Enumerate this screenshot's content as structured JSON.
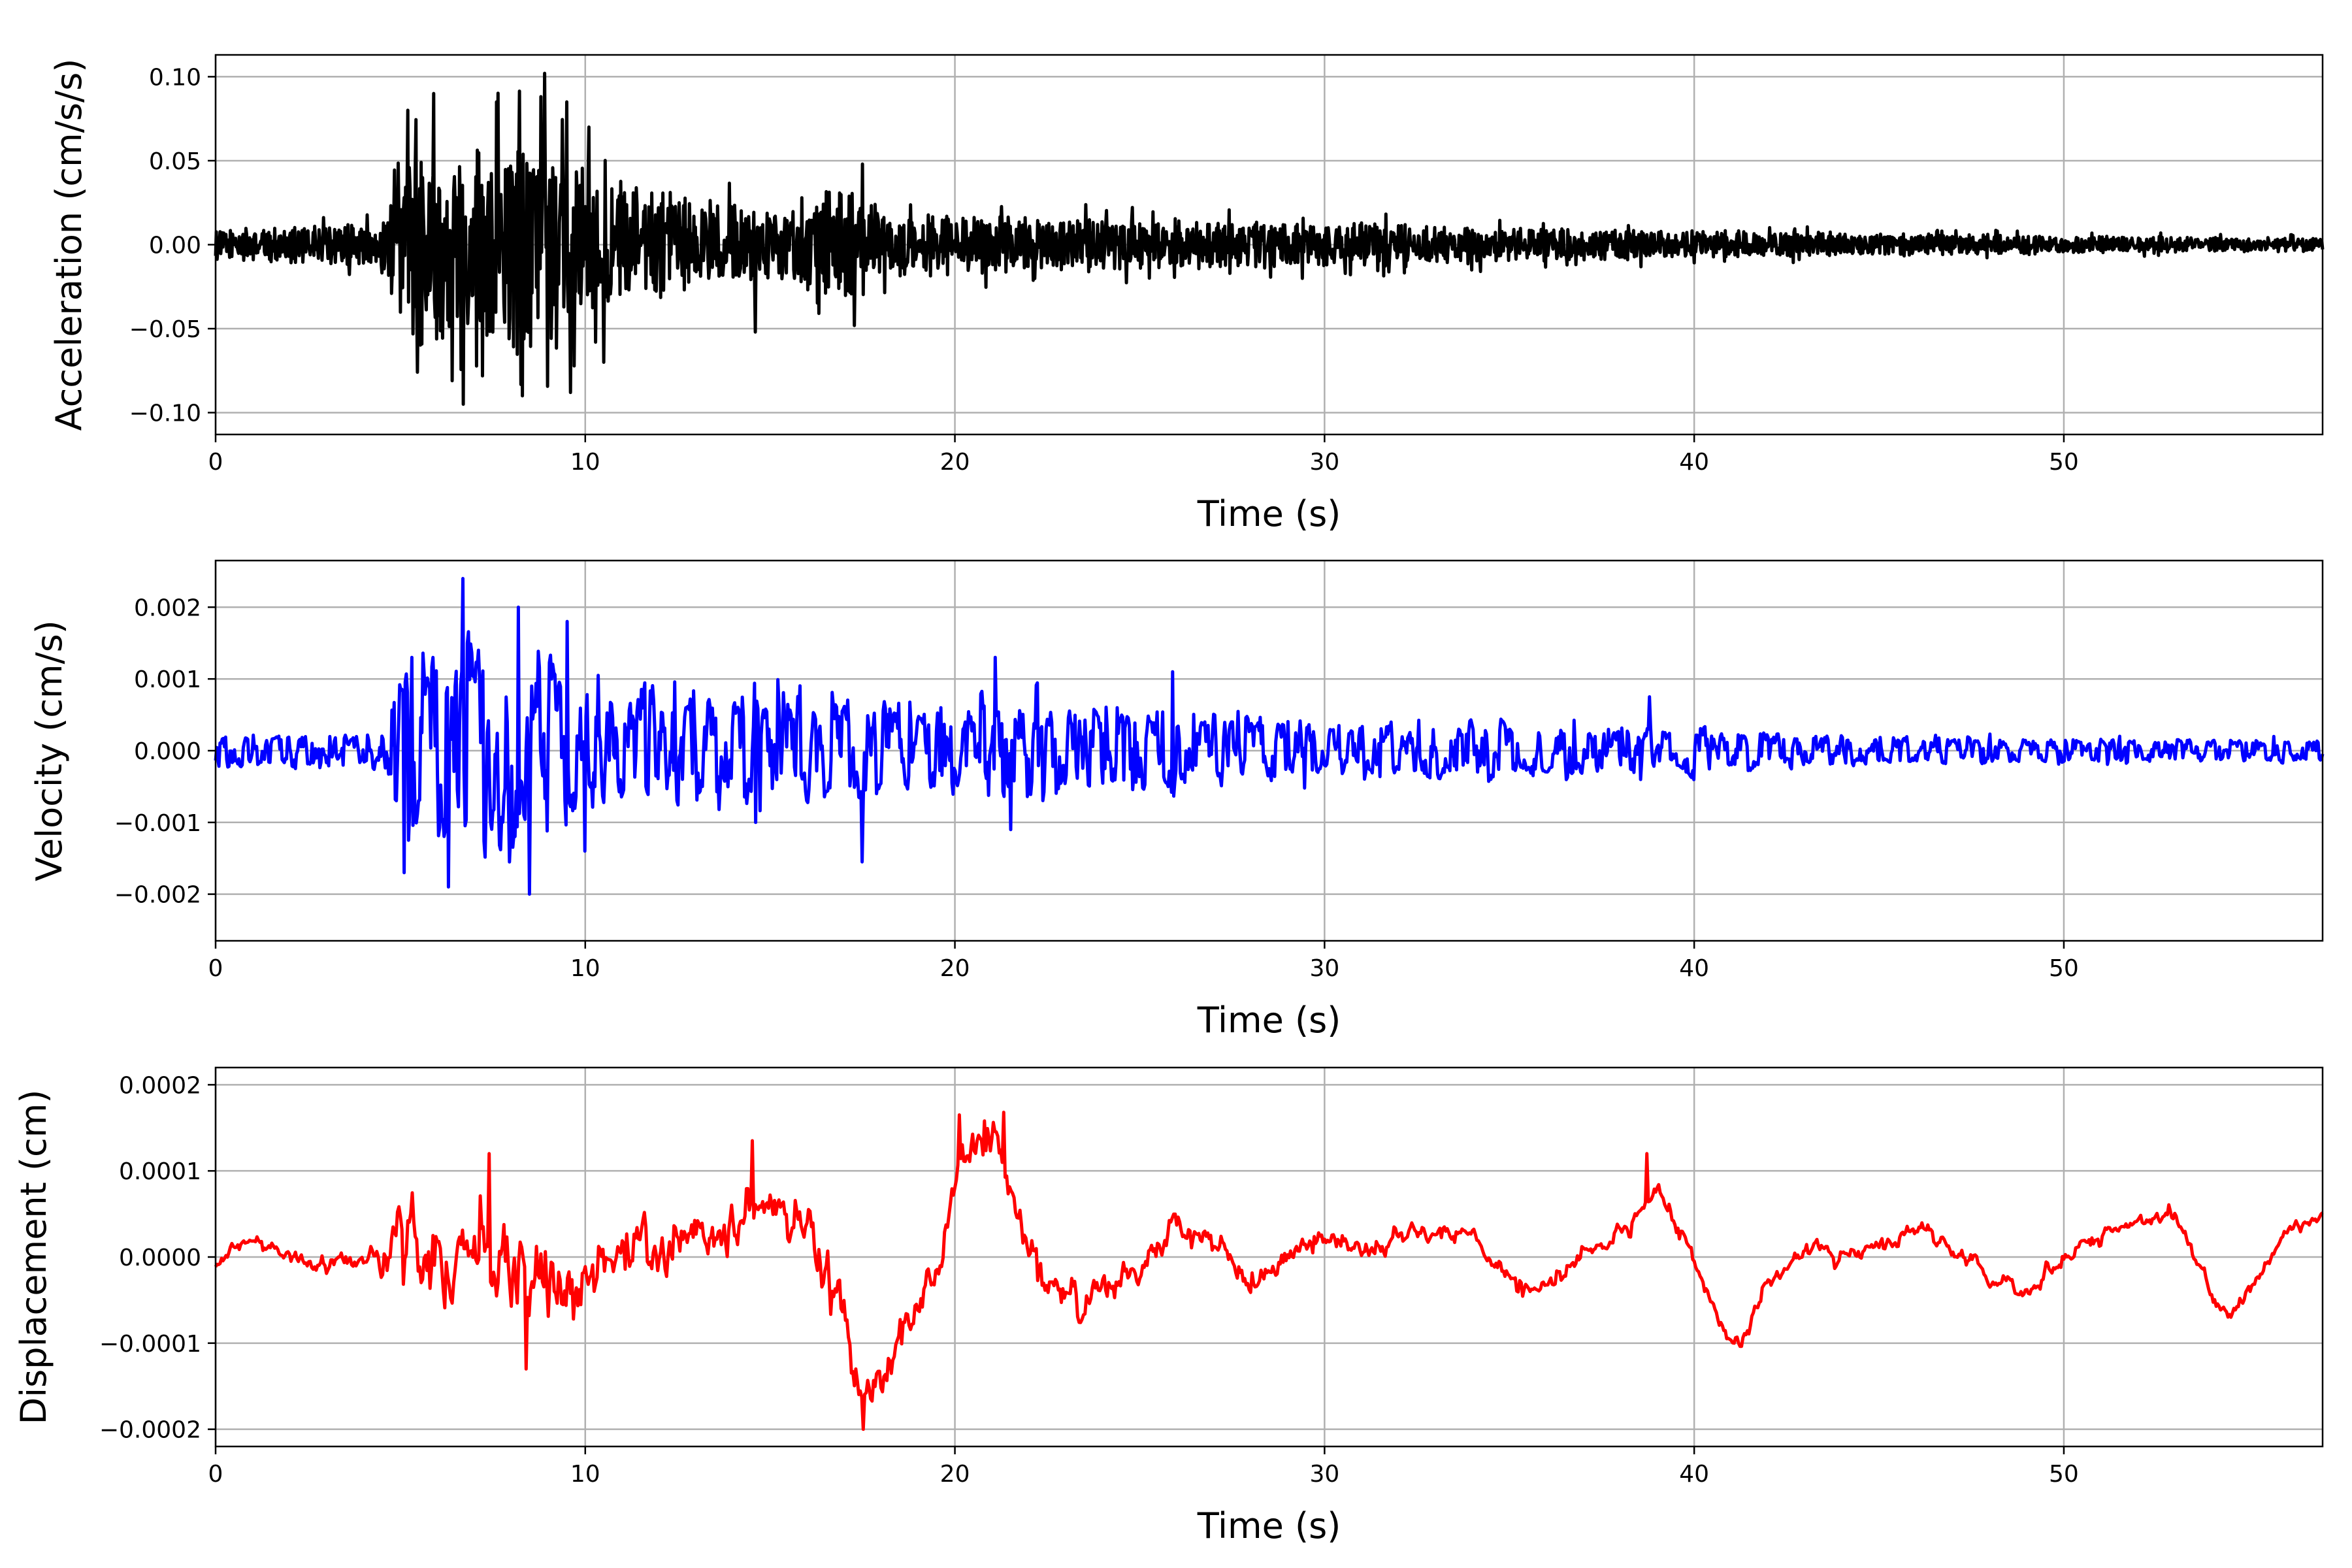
{
  "chart_data": [
    {
      "type": "line",
      "xlabel": "Time (s)",
      "ylabel": "Acceleration (cm/s/s)",
      "xlim": [
        0,
        57
      ],
      "ylim": [
        -0.113,
        0.113
      ],
      "xticks": [
        0,
        10,
        20,
        30,
        40,
        50
      ],
      "yticks": [
        -0.1,
        -0.05,
        0.0,
        0.05,
        0.1
      ],
      "ytick_labels": [
        "−0.10",
        "−0.05",
        "0.00",
        "0.05",
        "0.10"
      ],
      "grid": true,
      "color": "#000000",
      "envelope": [
        [
          0,
          0.013
        ],
        [
          4.5,
          0.02
        ],
        [
          5.0,
          0.065
        ],
        [
          5.5,
          0.09
        ],
        [
          7,
          0.09
        ],
        [
          9,
          0.1
        ],
        [
          10,
          0.07
        ],
        [
          11,
          0.055
        ],
        [
          13,
          0.04
        ],
        [
          15,
          0.035
        ],
        [
          17.5,
          0.05
        ],
        [
          18,
          0.03
        ],
        [
          22,
          0.025
        ],
        [
          30,
          0.02
        ],
        [
          40,
          0.012
        ],
        [
          50,
          0.008
        ],
        [
          57,
          0.006
        ]
      ],
      "peaks": [
        [
          5.2,
          0.08
        ],
        [
          5.9,
          0.09
        ],
        [
          6.7,
          -0.095
        ],
        [
          7.6,
          0.085
        ],
        [
          8.3,
          -0.09
        ],
        [
          8.9,
          0.102
        ],
        [
          9.5,
          0.085
        ],
        [
          9.6,
          -0.088
        ],
        [
          10.1,
          0.07
        ],
        [
          10.5,
          -0.07
        ],
        [
          14.6,
          -0.052
        ],
        [
          17.5,
          0.048
        ]
      ]
    },
    {
      "type": "line",
      "xlabel": "Time (s)",
      "ylabel": "Velocity (cm/s)",
      "xlim": [
        0,
        57
      ],
      "ylim": [
        -0.00265,
        0.00265
      ],
      "xticks": [
        0,
        10,
        20,
        30,
        40,
        50
      ],
      "yticks": [
        -0.002,
        -0.001,
        0.0,
        0.001,
        0.002
      ],
      "ytick_labels": [
        "−0.002",
        "−0.001",
        "0.000",
        "0.001",
        "0.002"
      ],
      "grid": true,
      "color": "#0000ff",
      "envelope": [
        [
          0,
          0.0003
        ],
        [
          4.5,
          0.0003
        ],
        [
          5.0,
          0.0015
        ],
        [
          5.5,
          0.0019
        ],
        [
          7,
          0.0019
        ],
        [
          9,
          0.0018
        ],
        [
          10,
          0.0012
        ],
        [
          12,
          0.0011
        ],
        [
          15,
          0.0011
        ],
        [
          18,
          0.0009
        ],
        [
          22,
          0.0009
        ],
        [
          30,
          0.00055
        ],
        [
          40,
          0.0004
        ],
        [
          45,
          0.00025
        ],
        [
          57,
          0.0002
        ]
      ],
      "peaks": [
        [
          5.1,
          -0.0017
        ],
        [
          5.3,
          0.0013
        ],
        [
          6.3,
          -0.0019
        ],
        [
          6.7,
          0.0024
        ],
        [
          7.1,
          0.0014
        ],
        [
          8.2,
          0.002
        ],
        [
          8.5,
          -0.002
        ],
        [
          9.5,
          0.0018
        ],
        [
          10.0,
          -0.0014
        ],
        [
          14.6,
          -0.001
        ],
        [
          17.5,
          -0.00155
        ],
        [
          21.1,
          0.0013
        ],
        [
          21.5,
          -0.0011
        ],
        [
          25.9,
          0.0011
        ],
        [
          38.8,
          0.00075
        ]
      ]
    },
    {
      "type": "line",
      "xlabel": "Time (s)",
      "ylabel": "Displacement (cm)",
      "xlim": [
        0,
        57
      ],
      "ylim": [
        -0.00022,
        0.00022
      ],
      "xticks": [
        0,
        10,
        20,
        30,
        40,
        50
      ],
      "yticks": [
        -0.0002,
        -0.0001,
        0.0,
        0.0001,
        0.0002
      ],
      "ytick_labels": [
        "−0.0002",
        "−0.0001",
        "0.0000",
        "0.0001",
        "0.0002"
      ],
      "grid": true,
      "color": "#ff0000",
      "trend": [
        [
          0,
          -1e-05
        ],
        [
          1,
          2e-05
        ],
        [
          3,
          -1e-05
        ],
        [
          5,
          1e-05
        ],
        [
          6,
          1e-05
        ],
        [
          7,
          1e-05
        ],
        [
          8,
          -1e-05
        ],
        [
          9,
          -3e-05
        ],
        [
          10,
          -4e-05
        ],
        [
          11,
          1e-05
        ],
        [
          12,
          1e-05
        ],
        [
          13,
          2e-05
        ],
        [
          14,
          4e-05
        ],
        [
          15,
          6e-05
        ],
        [
          16,
          3e-05
        ],
        [
          17,
          -8e-05
        ],
        [
          17.6,
          -0.00015
        ],
        [
          18.5,
          -0.0001
        ],
        [
          19.5,
          -2e-05
        ],
        [
          20.2,
          0.00012
        ],
        [
          21.2,
          0.00014
        ],
        [
          22,
          0.0
        ],
        [
          23,
          -4e-05
        ],
        [
          24,
          -4e-05
        ],
        [
          25,
          -2e-05
        ],
        [
          26,
          4e-05
        ],
        [
          27,
          2e-05
        ],
        [
          28,
          -4e-05
        ],
        [
          29,
          0.0
        ],
        [
          30,
          2e-05
        ],
        [
          31,
          1e-05
        ],
        [
          32,
          2e-05
        ],
        [
          33,
          3e-05
        ],
        [
          34,
          2e-05
        ],
        [
          35,
          -3e-05
        ],
        [
          36,
          -4e-05
        ],
        [
          37,
          0.0
        ],
        [
          38,
          3e-05
        ],
        [
          39,
          8e-05
        ],
        [
          40,
          0.0
        ],
        [
          40.7,
          -8e-05
        ],
        [
          41.2,
          -0.0001
        ],
        [
          42,
          -3e-05
        ],
        [
          43,
          1e-05
        ],
        [
          44,
          0.0
        ],
        [
          45,
          1e-05
        ],
        [
          46,
          3e-05
        ],
        [
          47,
          1e-05
        ],
        [
          48,
          -2e-05
        ],
        [
          49,
          -4e-05
        ],
        [
          50,
          0.0
        ],
        [
          51,
          3e-05
        ],
        [
          52,
          4e-05
        ],
        [
          53,
          5e-05
        ],
        [
          54,
          -4e-05
        ],
        [
          54.5,
          -7e-05
        ],
        [
          55,
          -4e-05
        ],
        [
          56,
          3e-05
        ],
        [
          57,
          5e-05
        ]
      ],
      "wiggle": [
        [
          0,
          5e-06
        ],
        [
          4,
          1e-05
        ],
        [
          5,
          4e-05
        ],
        [
          9,
          5e-05
        ],
        [
          10,
          3e-05
        ],
        [
          16,
          2e-05
        ],
        [
          17,
          3e-05
        ],
        [
          19,
          2e-05
        ],
        [
          22,
          2e-05
        ],
        [
          30,
          1e-05
        ],
        [
          57,
          6e-06
        ]
      ],
      "peaks": [
        [
          7.4,
          0.00012
        ],
        [
          8.4,
          -0.00013
        ],
        [
          14.5,
          0.000135
        ],
        [
          17.5,
          -0.0002
        ],
        [
          20.1,
          0.000165
        ],
        [
          21.3,
          0.000168
        ],
        [
          38.7,
          0.00012
        ],
        [
          41.2,
          -0.0001
        ]
      ]
    }
  ]
}
